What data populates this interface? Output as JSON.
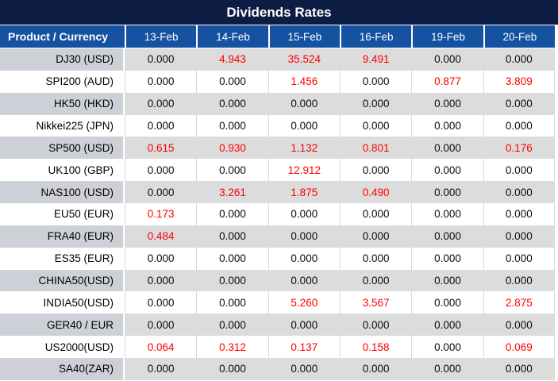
{
  "title": "Dividends Rates",
  "columns": [
    "Product / Currency",
    "13-Feb",
    "14-Feb",
    "15-Feb",
    "16-Feb",
    "19-Feb",
    "20-Feb"
  ],
  "rows": [
    {
      "product": "DJ30 (USD)",
      "values": [
        "0.000",
        "4.943",
        "35.524",
        "9.491",
        "0.000",
        "0.000"
      ],
      "red": [
        false,
        true,
        true,
        true,
        false,
        false
      ]
    },
    {
      "product": "SPI200 (AUD)",
      "values": [
        "0.000",
        "0.000",
        "1.456",
        "0.000",
        "0.877",
        "3.809"
      ],
      "red": [
        false,
        false,
        true,
        false,
        true,
        true
      ]
    },
    {
      "product": "HK50 (HKD)",
      "values": [
        "0.000",
        "0.000",
        "0.000",
        "0.000",
        "0.000",
        "0.000"
      ],
      "red": [
        false,
        false,
        false,
        false,
        false,
        false
      ]
    },
    {
      "product": "Nikkei225 (JPN)",
      "values": [
        "0.000",
        "0.000",
        "0.000",
        "0.000",
        "0.000",
        "0.000"
      ],
      "red": [
        false,
        false,
        false,
        false,
        false,
        false
      ]
    },
    {
      "product": "SP500 (USD)",
      "values": [
        "0.615",
        "0.930",
        "1.132",
        "0.801",
        "0.000",
        "0.176"
      ],
      "red": [
        true,
        true,
        true,
        true,
        false,
        true
      ]
    },
    {
      "product": "UK100 (GBP)",
      "values": [
        "0.000",
        "0.000",
        "12.912",
        "0.000",
        "0.000",
        "0.000"
      ],
      "red": [
        false,
        false,
        true,
        false,
        false,
        false
      ]
    },
    {
      "product": "NAS100 (USD)",
      "values": [
        "0.000",
        "3.261",
        "1.875",
        "0.490",
        "0.000",
        "0.000"
      ],
      "red": [
        false,
        true,
        true,
        true,
        false,
        false
      ]
    },
    {
      "product": "EU50 (EUR)",
      "values": [
        "0.173",
        "0.000",
        "0.000",
        "0.000",
        "0.000",
        "0.000"
      ],
      "red": [
        true,
        false,
        false,
        false,
        false,
        false
      ]
    },
    {
      "product": "FRA40 (EUR)",
      "values": [
        "0.484",
        "0.000",
        "0.000",
        "0.000",
        "0.000",
        "0.000"
      ],
      "red": [
        true,
        false,
        false,
        false,
        false,
        false
      ]
    },
    {
      "product": "ES35 (EUR)",
      "values": [
        "0.000",
        "0.000",
        "0.000",
        "0.000",
        "0.000",
        "0.000"
      ],
      "red": [
        false,
        false,
        false,
        false,
        false,
        false
      ]
    },
    {
      "product": "CHINA50(USD)",
      "values": [
        "0.000",
        "0.000",
        "0.000",
        "0.000",
        "0.000",
        "0.000"
      ],
      "red": [
        false,
        false,
        false,
        false,
        false,
        false
      ]
    },
    {
      "product": "INDIA50(USD)",
      "values": [
        "0.000",
        "0.000",
        "5.260",
        "3.567",
        "0.000",
        "2.875"
      ],
      "red": [
        false,
        false,
        true,
        true,
        false,
        true
      ]
    },
    {
      "product": "GER40 / EUR",
      "values": [
        "0.000",
        "0.000",
        "0.000",
        "0.000",
        "0.000",
        "0.000"
      ],
      "red": [
        false,
        false,
        false,
        false,
        false,
        false
      ]
    },
    {
      "product": "US2000(USD)",
      "values": [
        "0.064",
        "0.312",
        "0.137",
        "0.158",
        "0.000",
        "0.069"
      ],
      "red": [
        true,
        true,
        true,
        true,
        false,
        true
      ]
    },
    {
      "product": "SA40(ZAR)",
      "values": [
        "0.000",
        "0.000",
        "0.000",
        "0.000",
        "0.000",
        "0.000"
      ],
      "red": [
        false,
        false,
        false,
        false,
        false,
        false
      ]
    }
  ],
  "colors": {
    "title_bg": "#0c1c42",
    "header_bg": "#1552a1",
    "header_text": "#ffffff",
    "shade_row_product_bg": "#cdd1d7",
    "shade_row_value_bg": "#dcdcdc",
    "plain_row_bg": "#ffffff",
    "value_text": "#0c0c0c",
    "nonzero_value_text": "#fe0000"
  },
  "chart_data": {
    "type": "table",
    "title": "Dividends Rates",
    "columns": [
      "Product / Currency",
      "13-Feb",
      "14-Feb",
      "15-Feb",
      "16-Feb",
      "19-Feb",
      "20-Feb"
    ],
    "rows": [
      [
        "DJ30 (USD)",
        0.0,
        4.943,
        35.524,
        9.491,
        0.0,
        0.0
      ],
      [
        "SPI200 (AUD)",
        0.0,
        0.0,
        1.456,
        0.0,
        0.877,
        3.809
      ],
      [
        "HK50 (HKD)",
        0.0,
        0.0,
        0.0,
        0.0,
        0.0,
        0.0
      ],
      [
        "Nikkei225 (JPN)",
        0.0,
        0.0,
        0.0,
        0.0,
        0.0,
        0.0
      ],
      [
        "SP500 (USD)",
        0.615,
        0.93,
        1.132,
        0.801,
        0.0,
        0.176
      ],
      [
        "UK100 (GBP)",
        0.0,
        0.0,
        12.912,
        0.0,
        0.0,
        0.0
      ],
      [
        "NAS100 (USD)",
        0.0,
        3.261,
        1.875,
        0.49,
        0.0,
        0.0
      ],
      [
        "EU50 (EUR)",
        0.173,
        0.0,
        0.0,
        0.0,
        0.0,
        0.0
      ],
      [
        "FRA40 (EUR)",
        0.484,
        0.0,
        0.0,
        0.0,
        0.0,
        0.0
      ],
      [
        "ES35 (EUR)",
        0.0,
        0.0,
        0.0,
        0.0,
        0.0,
        0.0
      ],
      [
        "CHINA50(USD)",
        0.0,
        0.0,
        0.0,
        0.0,
        0.0,
        0.0
      ],
      [
        "INDIA50(USD)",
        0.0,
        0.0,
        5.26,
        3.567,
        0.0,
        2.875
      ],
      [
        "GER40 / EUR",
        0.0,
        0.0,
        0.0,
        0.0,
        0.0,
        0.0
      ],
      [
        "US2000(USD)",
        0.064,
        0.312,
        0.137,
        0.158,
        0.0,
        0.069
      ],
      [
        "SA40(ZAR)",
        0.0,
        0.0,
        0.0,
        0.0,
        0.0,
        0.0
      ]
    ],
    "legend_note": "non-zero dividend values rendered in red"
  }
}
